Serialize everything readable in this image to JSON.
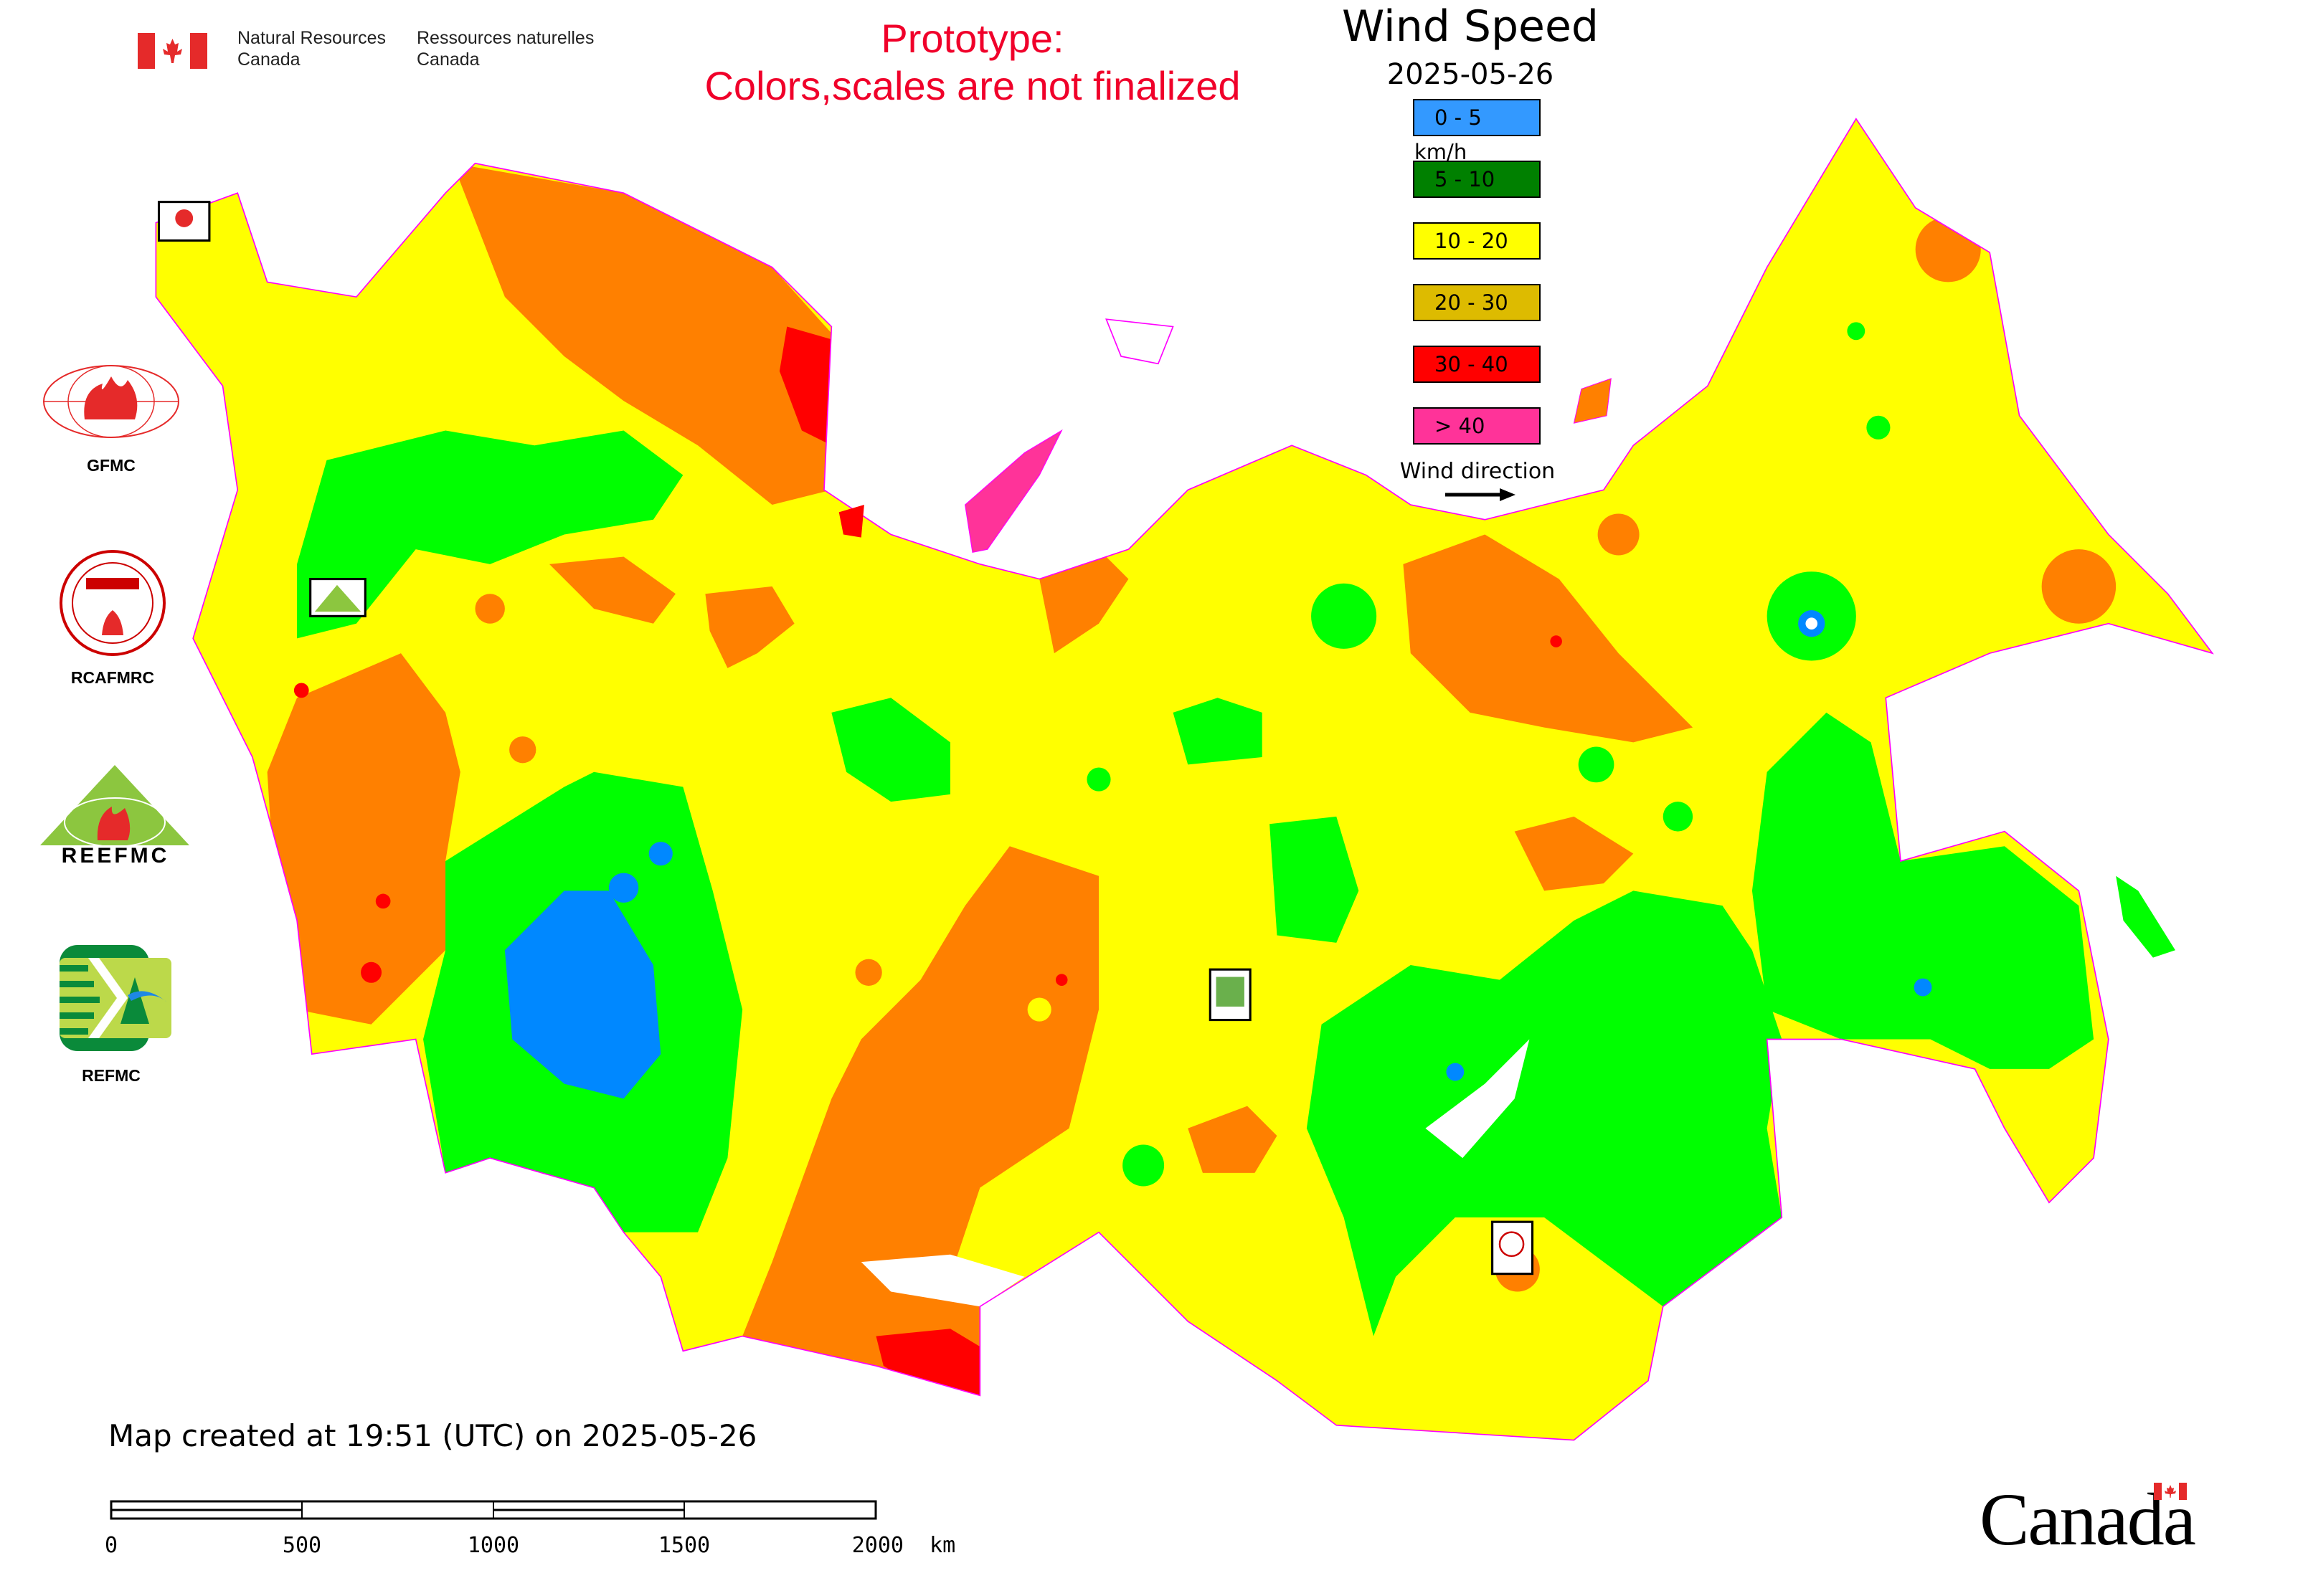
{
  "header": {
    "agency_en_line1": "Natural Resources",
    "agency_en_line2": "Canada",
    "agency_fr_line1": "Ressources naturelles",
    "agency_fr_line2": "Canada",
    "notice_line1": "Prototype:",
    "notice_line2": "Colors,scales are not finalized",
    "notice_color": "#f0002a"
  },
  "legend": {
    "title": "Wind Speed",
    "date": "2025-05-26",
    "items": [
      {
        "label": "0 - 5 km/h",
        "color": "#3399ff"
      },
      {
        "label": "5 - 10",
        "color": "#008000"
      },
      {
        "label": "10 - 20",
        "color": "#ffff00"
      },
      {
        "label": "20 - 30",
        "color": "#ddbb00"
      },
      {
        "label": "30 - 40",
        "color": "#ff0000"
      },
      {
        "label": "> 40",
        "color": "#ff3399"
      }
    ],
    "wind_direction_label": "Wind direction",
    "wind_direction_icon": "arrow-right-icon"
  },
  "map_colors": {
    "calm": "#0088ff",
    "light": "#00ff00",
    "moderate": "#ffff00",
    "fresh": "#ff8000",
    "strong": "#ff0000",
    "border": "#ff00ff"
  },
  "logos": {
    "gfmc": "GFMC",
    "rcafmrc": "RCAFMRC",
    "reefmc": "REEFMC",
    "refmc": "REFMC"
  },
  "footer": {
    "created": "Map created at 19:51 (UTC) on 2025-05-26",
    "scale_labels": [
      "0",
      "500",
      "1000",
      "1500",
      "2000  km"
    ],
    "wordmark": "Canada"
  }
}
